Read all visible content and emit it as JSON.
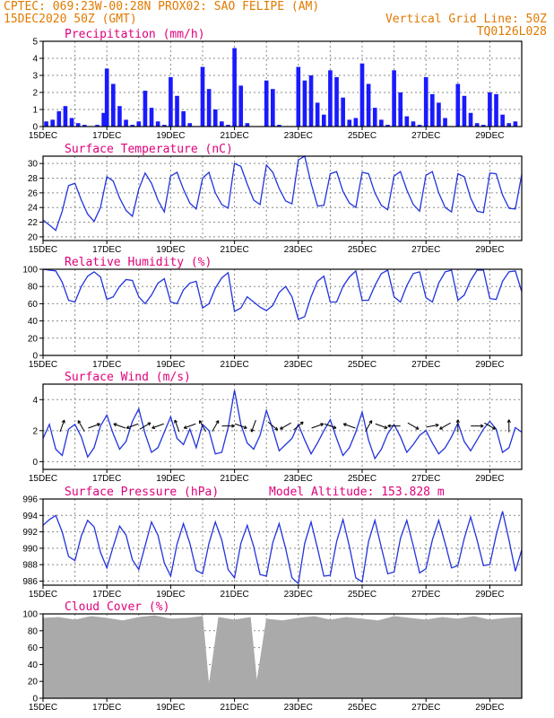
{
  "header": {
    "line1_left": "CPTEC:  069:23W-00:28N  PROX02: SAO FELIPE (AM)",
    "line2_left": "15DEC2020 50Z (GMT)",
    "line2_right": "Vertical Grid Line: 50Z",
    "line3_right": "TQ0126L028"
  },
  "colors": {
    "header": "#e07a00",
    "panel_title": "#e0007a",
    "series_line": "#2233dd",
    "bar": "#1a1aff",
    "cloud": "#aaaaaa"
  },
  "chart_data": [
    {
      "type": "bar",
      "title": "Precipitation (mm/h)",
      "x_tick_labels": [
        "15DEC",
        "17DEC",
        "19DEC",
        "21DEC",
        "23DEC",
        "25DEC",
        "27DEC",
        "29DEC"
      ],
      "ylim": [
        0,
        5
      ],
      "y_ticks": [
        0,
        1,
        2,
        3,
        4,
        5
      ],
      "x": [
        15.1,
        15.3,
        15.5,
        15.7,
        15.9,
        16.1,
        16.3,
        16.5,
        16.7,
        16.9,
        17.0,
        17.2,
        17.4,
        17.6,
        17.8,
        18.0,
        18.2,
        18.4,
        18.6,
        18.8,
        19.0,
        19.2,
        19.4,
        19.6,
        19.8,
        20.0,
        20.2,
        20.4,
        20.6,
        20.8,
        21.0,
        21.2,
        21.4,
        21.6,
        21.8,
        22.0,
        22.2,
        22.4,
        22.6,
        22.8,
        23.0,
        23.2,
        23.4,
        23.6,
        23.8,
        24.0,
        24.2,
        24.4,
        24.6,
        24.8,
        25.0,
        25.2,
        25.4,
        25.6,
        25.8,
        26.0,
        26.2,
        26.4,
        26.6,
        26.8,
        27.0,
        27.2,
        27.4,
        27.6,
        27.8,
        28.0,
        28.2,
        28.4,
        28.6,
        28.8,
        29.0,
        29.2,
        29.4,
        29.6,
        29.8
      ],
      "values": [
        0.3,
        0.4,
        0.9,
        1.2,
        0.5,
        0.2,
        0.1,
        0.0,
        0.1,
        0.8,
        3.4,
        2.5,
        1.2,
        0.4,
        0.1,
        0.3,
        2.1,
        1.1,
        0.3,
        0.1,
        2.9,
        1.8,
        0.9,
        0.2,
        0.0,
        3.5,
        2.2,
        1.0,
        0.3,
        0.1,
        4.6,
        2.4,
        0.2,
        0.0,
        0.0,
        2.7,
        2.2,
        0.1,
        0.0,
        0.0,
        3.5,
        2.7,
        3.0,
        1.4,
        0.7,
        3.3,
        2.9,
        1.7,
        0.4,
        0.5,
        3.7,
        2.5,
        1.1,
        0.4,
        0.1,
        3.3,
        2.0,
        0.6,
        0.3,
        0.1,
        2.9,
        1.9,
        1.4,
        0.5,
        0.0,
        2.5,
        1.8,
        0.8,
        0.2,
        0.1,
        2.0,
        1.9,
        0.7,
        0.2,
        0.3
      ]
    },
    {
      "type": "line",
      "title": "Surface Temperature (nC)",
      "x_tick_labels": [
        "15DEC",
        "17DEC",
        "19DEC",
        "21DEC",
        "23DEC",
        "25DEC",
        "27DEC",
        "29DEC"
      ],
      "ylim": [
        19.5,
        31
      ],
      "y_ticks": [
        20,
        22,
        24,
        26,
        28,
        30
      ],
      "x": [
        15.0,
        15.2,
        15.4,
        15.6,
        15.8,
        16.0,
        16.2,
        16.4,
        16.6,
        16.8,
        17.0,
        17.2,
        17.4,
        17.6,
        17.8,
        18.0,
        18.2,
        18.4,
        18.6,
        18.8,
        19.0,
        19.2,
        19.4,
        19.6,
        19.8,
        20.0,
        20.2,
        20.4,
        20.6,
        20.8,
        21.0,
        21.2,
        21.4,
        21.6,
        21.8,
        22.0,
        22.2,
        22.4,
        22.6,
        22.8,
        23.0,
        23.2,
        23.4,
        23.6,
        23.8,
        24.0,
        24.2,
        24.4,
        24.6,
        24.8,
        25.0,
        25.2,
        25.4,
        25.6,
        25.8,
        26.0,
        26.2,
        26.4,
        26.6,
        26.8,
        27.0,
        27.2,
        27.4,
        27.6,
        27.8,
        28.0,
        28.2,
        28.4,
        28.6,
        28.8,
        29.0,
        29.2,
        29.4,
        29.6,
        29.8,
        30.0
      ],
      "values": [
        22.3,
        21.6,
        20.9,
        23.5,
        27.0,
        27.3,
        25.0,
        23.1,
        22.1,
        24.0,
        28.2,
        27.6,
        25.3,
        23.6,
        22.8,
        26.5,
        28.7,
        27.3,
        25.0,
        23.4,
        28.3,
        28.8,
        26.5,
        24.6,
        23.8,
        28.0,
        28.8,
        26.0,
        24.4,
        23.9,
        30.0,
        29.6,
        27.2,
        25.0,
        24.4,
        29.8,
        28.8,
        26.6,
        24.9,
        24.5,
        30.5,
        31.0,
        27.3,
        24.2,
        24.3,
        28.6,
        28.9,
        26.2,
        24.6,
        24.0,
        28.8,
        28.6,
        26.0,
        24.3,
        23.7,
        28.3,
        28.9,
        26.4,
        24.4,
        23.5,
        28.4,
        28.9,
        26.0,
        24.0,
        23.4,
        28.6,
        28.2,
        25.3,
        23.5,
        23.3,
        28.7,
        28.6,
        25.7,
        23.9,
        23.8,
        28.5
      ]
    },
    {
      "type": "line",
      "title": "Relative Humidity (%)",
      "x_tick_labels": [
        "15DEC",
        "17DEC",
        "19DEC",
        "21DEC",
        "23DEC",
        "25DEC",
        "27DEC",
        "29DEC"
      ],
      "ylim": [
        0,
        100
      ],
      "y_ticks": [
        0,
        20,
        40,
        60,
        80,
        100
      ],
      "x": [
        15.0,
        15.2,
        15.4,
        15.6,
        15.8,
        16.0,
        16.2,
        16.4,
        16.6,
        16.8,
        17.0,
        17.2,
        17.4,
        17.6,
        17.8,
        18.0,
        18.2,
        18.4,
        18.6,
        18.8,
        19.0,
        19.2,
        19.4,
        19.6,
        19.8,
        20.0,
        20.2,
        20.4,
        20.6,
        20.8,
        21.0,
        21.2,
        21.4,
        21.6,
        21.8,
        22.0,
        22.2,
        22.4,
        22.6,
        22.8,
        23.0,
        23.2,
        23.4,
        23.6,
        23.8,
        24.0,
        24.2,
        24.4,
        24.6,
        24.8,
        25.0,
        25.2,
        25.4,
        25.6,
        25.8,
        26.0,
        26.2,
        26.4,
        26.6,
        26.8,
        27.0,
        27.2,
        27.4,
        27.6,
        27.8,
        28.0,
        28.2,
        28.4,
        28.6,
        28.8,
        29.0,
        29.2,
        29.4,
        29.6,
        29.8,
        30.0
      ],
      "values": [
        100,
        99,
        98,
        85,
        64,
        62,
        80,
        92,
        97,
        91,
        65,
        68,
        80,
        88,
        87,
        68,
        60,
        70,
        84,
        89,
        62,
        60,
        76,
        84,
        86,
        55,
        60,
        78,
        90,
        96,
        51,
        55,
        68,
        62,
        56,
        52,
        58,
        73,
        80,
        68,
        42,
        45,
        68,
        86,
        92,
        62,
        62,
        80,
        91,
        98,
        64,
        64,
        81,
        95,
        99,
        68,
        62,
        81,
        95,
        97,
        67,
        62,
        84,
        97,
        99,
        64,
        70,
        87,
        99,
        99,
        66,
        65,
        86,
        97,
        98,
        74
      ]
    },
    {
      "type": "line",
      "title": "Surface Wind (m/s)",
      "x_tick_labels": [
        "15DEC",
        "17DEC",
        "19DEC",
        "21DEC",
        "23DEC",
        "25DEC",
        "27DEC",
        "29DEC"
      ],
      "ylim": [
        -0.5,
        5
      ],
      "y_ticks": [
        0,
        2,
        4
      ],
      "x": [
        15.0,
        15.2,
        15.4,
        15.6,
        15.8,
        16.0,
        16.2,
        16.4,
        16.6,
        16.8,
        17.0,
        17.2,
        17.4,
        17.6,
        17.8,
        18.0,
        18.2,
        18.4,
        18.6,
        18.8,
        19.0,
        19.2,
        19.4,
        19.6,
        19.8,
        20.0,
        20.2,
        20.4,
        20.6,
        20.8,
        21.0,
        21.2,
        21.4,
        21.6,
        21.8,
        22.0,
        22.2,
        22.4,
        22.6,
        22.8,
        23.0,
        23.2,
        23.4,
        23.6,
        23.8,
        24.0,
        24.2,
        24.4,
        24.6,
        24.8,
        25.0,
        25.2,
        25.4,
        25.6,
        25.8,
        26.0,
        26.2,
        26.4,
        26.6,
        26.8,
        27.0,
        27.2,
        27.4,
        27.6,
        27.8,
        28.0,
        28.2,
        28.4,
        28.6,
        28.8,
        29.0,
        29.2,
        29.4,
        29.6,
        29.8,
        30.0
      ],
      "values": [
        1.5,
        2.4,
        0.8,
        0.4,
        2.1,
        2.4,
        1.6,
        0.3,
        0.9,
        2.3,
        3.0,
        1.8,
        0.8,
        1.3,
        2.6,
        3.4,
        1.8,
        0.6,
        0.9,
        1.9,
        2.9,
        1.5,
        1.1,
        2.1,
        0.9,
        2.4,
        2.0,
        0.5,
        0.6,
        2.2,
        4.6,
        2.4,
        1.2,
        0.8,
        1.7,
        3.3,
        2.1,
        0.7,
        1.1,
        1.5,
        2.4,
        1.4,
        0.5,
        1.2,
        2.0,
        2.7,
        1.5,
        0.4,
        0.9,
        1.9,
        3.2,
        1.4,
        0.2,
        0.8,
        1.8,
        2.4,
        1.6,
        0.6,
        1.1,
        1.7,
        2.0,
        1.2,
        0.5,
        0.9,
        1.6,
        2.5,
        1.3,
        0.7,
        1.4,
        2.1,
        2.6,
        2.1,
        0.6,
        0.9,
        2.2,
        1.9
      ],
      "arrow_x": [
        15.6,
        16.2,
        16.6,
        17.4,
        17.8,
        18.2,
        18.6,
        19.2,
        19.6,
        20.0,
        20.4,
        20.8,
        21.2,
        21.6,
        22.2,
        22.6,
        23.0,
        23.6,
        24.0,
        24.6,
        25.2,
        25.6,
        26.0,
        26.6,
        27.2,
        27.6,
        28.0,
        28.6,
        29.0,
        29.6
      ],
      "arrow_angle_deg": [
        70,
        120,
        20,
        160,
        200,
        30,
        200,
        110,
        200,
        120,
        60,
        0,
        340,
        250,
        320,
        210,
        40,
        20,
        340,
        160,
        60,
        340,
        180,
        330,
        10,
        210,
        90,
        0,
        330,
        90
      ]
    },
    {
      "type": "line",
      "title": "Surface Pressure (hPa)",
      "annotation": "Model Altitude: 153.828  m",
      "x_tick_labels": [
        "15DEC",
        "17DEC",
        "19DEC",
        "21DEC",
        "23DEC",
        "25DEC",
        "27DEC",
        "29DEC"
      ],
      "ylim": [
        985.5,
        996
      ],
      "y_ticks": [
        986,
        988,
        990,
        992,
        994,
        996
      ],
      "x": [
        15.0,
        15.2,
        15.4,
        15.6,
        15.8,
        16.0,
        16.2,
        16.4,
        16.6,
        16.8,
        17.0,
        17.2,
        17.4,
        17.6,
        17.8,
        18.0,
        18.2,
        18.4,
        18.6,
        18.8,
        19.0,
        19.2,
        19.4,
        19.6,
        19.8,
        20.0,
        20.2,
        20.4,
        20.6,
        20.8,
        21.0,
        21.2,
        21.4,
        21.6,
        21.8,
        22.0,
        22.2,
        22.4,
        22.6,
        22.8,
        23.0,
        23.2,
        23.4,
        23.6,
        23.8,
        24.0,
        24.2,
        24.4,
        24.6,
        24.8,
        25.0,
        25.2,
        25.4,
        25.6,
        25.8,
        26.0,
        26.2,
        26.4,
        26.6,
        26.8,
        27.0,
        27.2,
        27.4,
        27.6,
        27.8,
        28.0,
        28.2,
        28.4,
        28.6,
        28.8,
        29.0,
        29.2,
        29.4,
        29.6,
        29.8,
        30.0
      ],
      "values": [
        992.8,
        993.5,
        994.0,
        992.0,
        989.0,
        988.5,
        991.5,
        993.4,
        992.6,
        989.5,
        987.6,
        990.2,
        992.7,
        991.6,
        988.6,
        987.4,
        990.3,
        993.2,
        991.6,
        988.2,
        986.6,
        990.5,
        993.0,
        990.6,
        987.3,
        986.9,
        990.6,
        993.2,
        991.0,
        987.4,
        986.4,
        990.6,
        992.8,
        990.2,
        986.8,
        986.6,
        990.7,
        993.0,
        990.0,
        986.4,
        985.7,
        990.6,
        993.2,
        990.0,
        986.6,
        986.7,
        990.8,
        993.5,
        990.2,
        986.4,
        985.9,
        990.8,
        993.4,
        990.1,
        986.9,
        987.1,
        991.2,
        993.4,
        990.3,
        987.0,
        987.5,
        991.0,
        993.4,
        990.6,
        987.6,
        987.9,
        991.2,
        993.8,
        991.0,
        987.9,
        988.0,
        991.6,
        994.5,
        991.0,
        987.2,
        989.8
      ]
    },
    {
      "type": "area",
      "title": "Cloud Cover (%)",
      "x_tick_labels": [
        "15DEC",
        "17DEC",
        "19DEC",
        "21DEC",
        "23DEC",
        "25DEC",
        "27DEC",
        "29DEC"
      ],
      "ylim": [
        0,
        100
      ],
      "y_ticks": [
        0,
        20,
        40,
        60,
        80,
        100
      ],
      "x": [
        15.0,
        15.5,
        16.0,
        16.5,
        17.0,
        17.5,
        18.0,
        18.5,
        19.0,
        19.5,
        20.0,
        20.2,
        20.5,
        21.0,
        21.5,
        21.7,
        22.0,
        22.5,
        23.0,
        23.5,
        24.0,
        24.5,
        25.0,
        25.5,
        26.0,
        26.5,
        27.0,
        27.5,
        28.0,
        28.5,
        29.0,
        29.5,
        30.0
      ],
      "values": [
        95,
        96,
        93,
        97,
        95,
        92,
        96,
        98,
        94,
        95,
        97,
        15,
        96,
        93,
        96,
        20,
        94,
        92,
        95,
        97,
        93,
        96,
        94,
        92,
        97,
        95,
        93,
        96,
        94,
        97,
        93,
        95,
        96
      ]
    }
  ]
}
